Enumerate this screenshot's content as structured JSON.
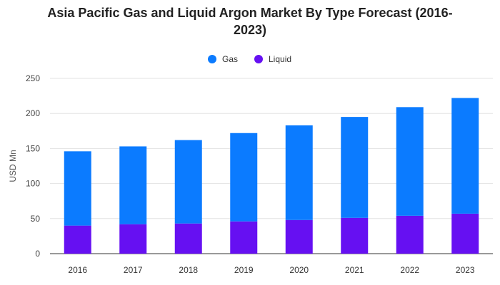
{
  "chart_data": {
    "type": "bar",
    "stacked": true,
    "title_line1": "Asia Pacific Gas and Liquid Argon Market By Type Forecast (2016-",
    "title_line2": "2023)",
    "ylabel": "USD Mn",
    "xlabel": "",
    "ylim": [
      0,
      250
    ],
    "yticks": [
      0,
      50,
      100,
      150,
      200,
      250
    ],
    "grid": true,
    "legend_position": "top-center",
    "categories": [
      "2016",
      "2017",
      "2018",
      "2019",
      "2020",
      "2021",
      "2022",
      "2023"
    ],
    "series": [
      {
        "name": "Liquid",
        "color": "#6610f2",
        "values": [
          40,
          42,
          43,
          46,
          48,
          51,
          54,
          57
        ]
      },
      {
        "name": "Gas",
        "color": "#0b7bff",
        "values": [
          106,
          111,
          119,
          126,
          135,
          144,
          155,
          165
        ]
      }
    ],
    "legend": [
      {
        "name": "Gas",
        "color": "#0b7bff"
      },
      {
        "name": "Liquid",
        "color": "#6610f2"
      }
    ]
  }
}
